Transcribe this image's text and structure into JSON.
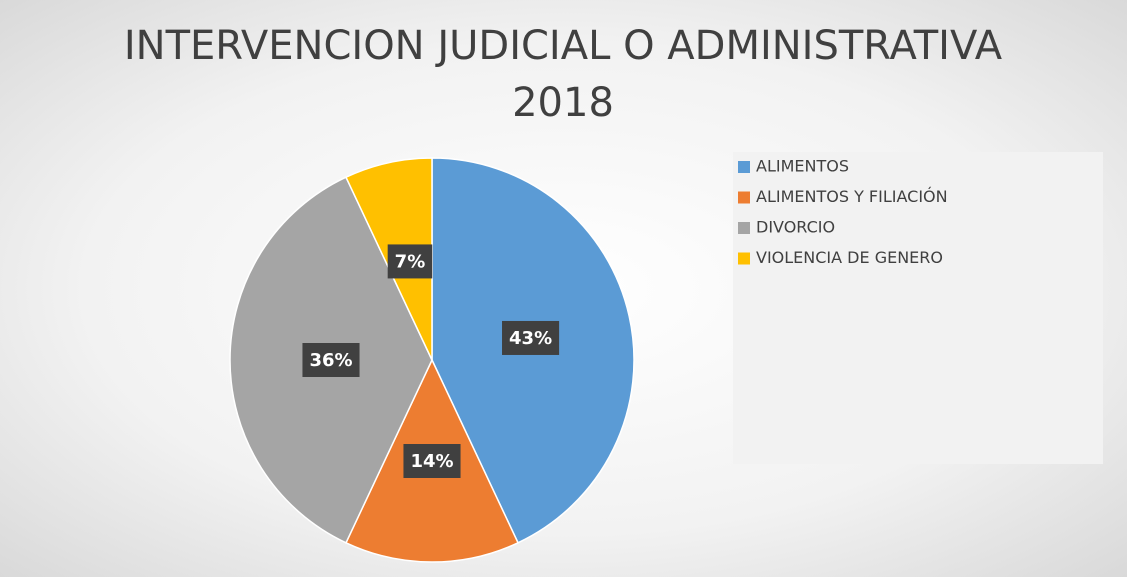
{
  "chart_data": {
    "type": "pie",
    "title": "INTERVENCION JUDICIAL O ADMINISTRATIVA 2018",
    "categories": [
      "ALIMENTOS",
      "ALIMENTOS Y FILIACIÓN",
      "DIVORCIO",
      "VIOLENCIA DE GENERO"
    ],
    "values": [
      43,
      14,
      36,
      7
    ],
    "value_labels": [
      "43%",
      "14%",
      "36%",
      "7%"
    ],
    "colors": [
      "#5b9bd5",
      "#ed7d31",
      "#a5a5a5",
      "#ffc000"
    ],
    "legend": "right"
  }
}
